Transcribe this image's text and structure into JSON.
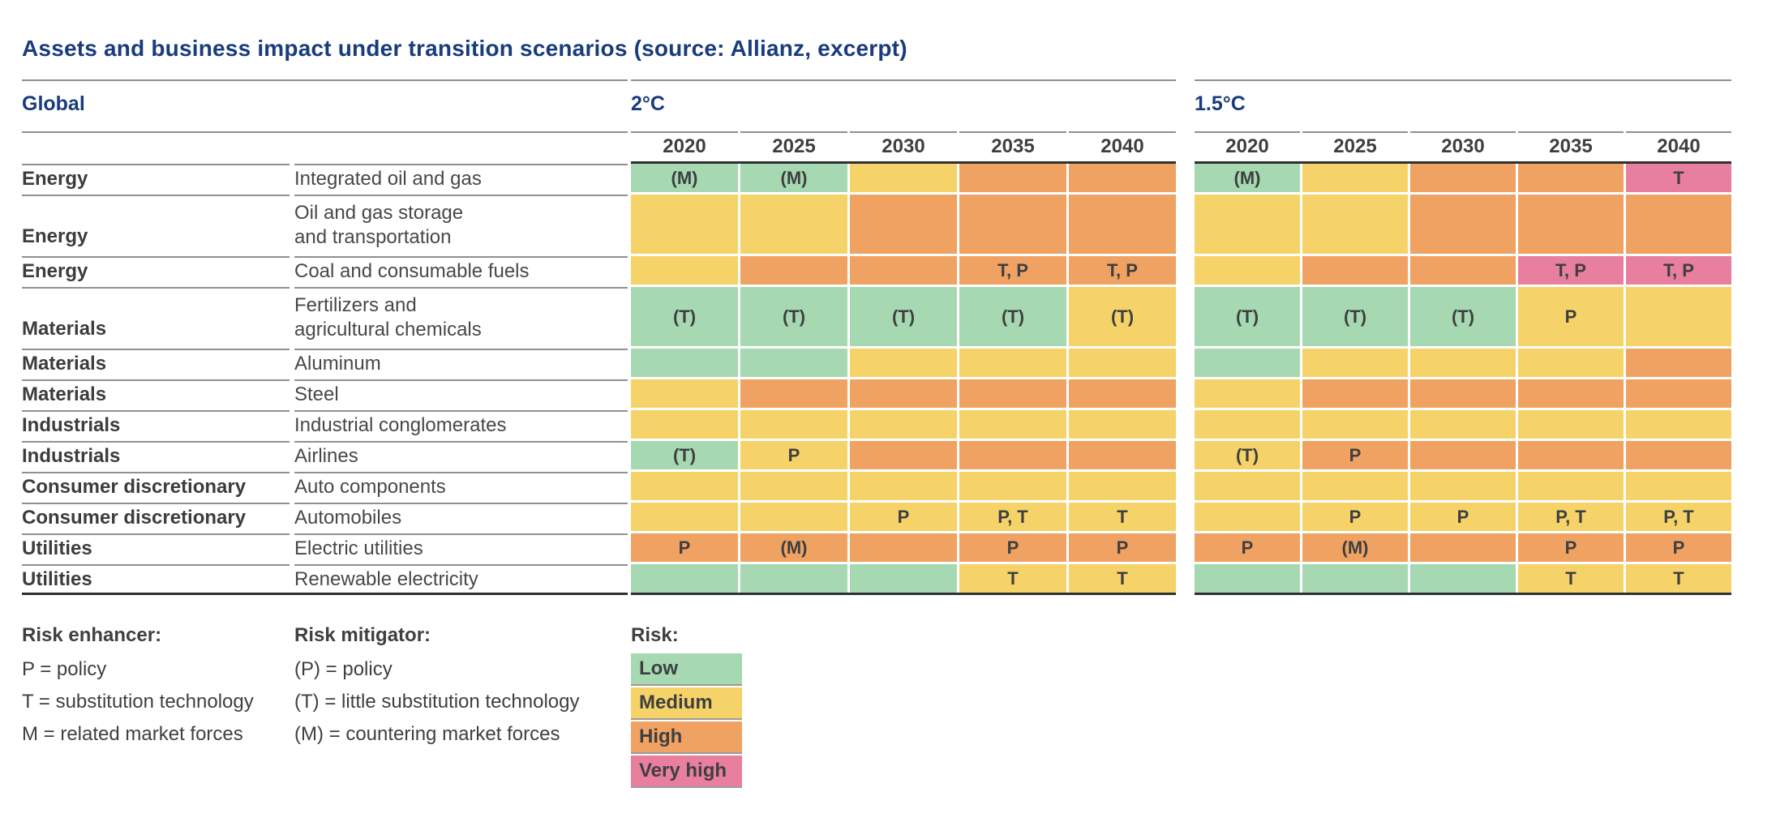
{
  "title": "Assets and business impact under transition scenarios (source: Allianz, excerpt)",
  "colors": {
    "low": "#a6d9b2",
    "medium": "#f5d369",
    "high": "#f0a263",
    "very_high": "#e87f9e",
    "heading_blue": "#183c7c",
    "text_dark": "#3e3f41"
  },
  "chart_data": {
    "type": "heatmap",
    "title": "Assets and business impact under transition scenarios (source: Allianz, excerpt)",
    "region": "Global",
    "risk_levels": [
      "Low",
      "Medium",
      "High",
      "Very high"
    ],
    "scenarios": [
      {
        "label": "2°C",
        "years": [
          "2020",
          "2025",
          "2030",
          "2035",
          "2040"
        ]
      },
      {
        "label": "1.5°C",
        "years": [
          "2020",
          "2025",
          "2030",
          "2035",
          "2040"
        ]
      }
    ],
    "rows": [
      {
        "sector": "Energy",
        "industry": [
          "Integrated oil and gas"
        ],
        "cells_2c": [
          {
            "risk": "low",
            "note": "(M)"
          },
          {
            "risk": "low",
            "note": "(M)"
          },
          {
            "risk": "medium",
            "note": ""
          },
          {
            "risk": "high",
            "note": ""
          },
          {
            "risk": "high",
            "note": ""
          }
        ],
        "cells_15c": [
          {
            "risk": "low",
            "note": "(M)"
          },
          {
            "risk": "medium",
            "note": ""
          },
          {
            "risk": "high",
            "note": ""
          },
          {
            "risk": "high",
            "note": ""
          },
          {
            "risk": "very_high",
            "note": "T"
          }
        ]
      },
      {
        "sector": "Energy",
        "industry": [
          "Oil and gas storage",
          "and transportation"
        ],
        "cells_2c": [
          {
            "risk": "medium",
            "note": ""
          },
          {
            "risk": "medium",
            "note": ""
          },
          {
            "risk": "high",
            "note": ""
          },
          {
            "risk": "high",
            "note": ""
          },
          {
            "risk": "high",
            "note": ""
          }
        ],
        "cells_15c": [
          {
            "risk": "medium",
            "note": ""
          },
          {
            "risk": "medium",
            "note": ""
          },
          {
            "risk": "high",
            "note": ""
          },
          {
            "risk": "high",
            "note": ""
          },
          {
            "risk": "high",
            "note": ""
          }
        ]
      },
      {
        "sector": "Energy",
        "industry": [
          "Coal and consumable fuels"
        ],
        "cells_2c": [
          {
            "risk": "medium",
            "note": ""
          },
          {
            "risk": "high",
            "note": ""
          },
          {
            "risk": "high",
            "note": ""
          },
          {
            "risk": "high",
            "note": "T, P"
          },
          {
            "risk": "high",
            "note": "T, P"
          }
        ],
        "cells_15c": [
          {
            "risk": "medium",
            "note": ""
          },
          {
            "risk": "high",
            "note": ""
          },
          {
            "risk": "high",
            "note": ""
          },
          {
            "risk": "very_high",
            "note": "T, P"
          },
          {
            "risk": "very_high",
            "note": "T, P"
          }
        ]
      },
      {
        "sector": "Materials",
        "industry": [
          "Fertilizers and",
          "agricultural chemicals"
        ],
        "cells_2c": [
          {
            "risk": "low",
            "note": "(T)"
          },
          {
            "risk": "low",
            "note": "(T)"
          },
          {
            "risk": "low",
            "note": "(T)"
          },
          {
            "risk": "low",
            "note": "(T)"
          },
          {
            "risk": "medium",
            "note": "(T)"
          }
        ],
        "cells_15c": [
          {
            "risk": "low",
            "note": "(T)"
          },
          {
            "risk": "low",
            "note": "(T)"
          },
          {
            "risk": "low",
            "note": "(T)"
          },
          {
            "risk": "medium",
            "note": "P"
          },
          {
            "risk": "medium",
            "note": ""
          }
        ]
      },
      {
        "sector": "Materials",
        "industry": [
          "Aluminum"
        ],
        "cells_2c": [
          {
            "risk": "low",
            "note": ""
          },
          {
            "risk": "low",
            "note": ""
          },
          {
            "risk": "medium",
            "note": ""
          },
          {
            "risk": "medium",
            "note": ""
          },
          {
            "risk": "medium",
            "note": ""
          }
        ],
        "cells_15c": [
          {
            "risk": "low",
            "note": ""
          },
          {
            "risk": "medium",
            "note": ""
          },
          {
            "risk": "medium",
            "note": ""
          },
          {
            "risk": "medium",
            "note": ""
          },
          {
            "risk": "high",
            "note": ""
          }
        ]
      },
      {
        "sector": "Materials",
        "industry": [
          "Steel"
        ],
        "cells_2c": [
          {
            "risk": "medium",
            "note": ""
          },
          {
            "risk": "high",
            "note": ""
          },
          {
            "risk": "high",
            "note": ""
          },
          {
            "risk": "high",
            "note": ""
          },
          {
            "risk": "high",
            "note": ""
          }
        ],
        "cells_15c": [
          {
            "risk": "medium",
            "note": ""
          },
          {
            "risk": "high",
            "note": ""
          },
          {
            "risk": "high",
            "note": ""
          },
          {
            "risk": "high",
            "note": ""
          },
          {
            "risk": "high",
            "note": ""
          }
        ]
      },
      {
        "sector": "Industrials",
        "industry": [
          "Industrial conglomerates"
        ],
        "cells_2c": [
          {
            "risk": "medium",
            "note": ""
          },
          {
            "risk": "medium",
            "note": ""
          },
          {
            "risk": "medium",
            "note": ""
          },
          {
            "risk": "medium",
            "note": ""
          },
          {
            "risk": "medium",
            "note": ""
          }
        ],
        "cells_15c": [
          {
            "risk": "medium",
            "note": ""
          },
          {
            "risk": "medium",
            "note": ""
          },
          {
            "risk": "medium",
            "note": ""
          },
          {
            "risk": "medium",
            "note": ""
          },
          {
            "risk": "medium",
            "note": ""
          }
        ]
      },
      {
        "sector": "Industrials",
        "industry": [
          "Airlines"
        ],
        "cells_2c": [
          {
            "risk": "low",
            "note": "(T)"
          },
          {
            "risk": "medium",
            "note": "P"
          },
          {
            "risk": "high",
            "note": ""
          },
          {
            "risk": "high",
            "note": ""
          },
          {
            "risk": "high",
            "note": ""
          }
        ],
        "cells_15c": [
          {
            "risk": "medium",
            "note": "(T)"
          },
          {
            "risk": "high",
            "note": "P"
          },
          {
            "risk": "high",
            "note": ""
          },
          {
            "risk": "high",
            "note": ""
          },
          {
            "risk": "high",
            "note": ""
          }
        ]
      },
      {
        "sector": "Consumer discretionary",
        "industry": [
          "Auto components"
        ],
        "cells_2c": [
          {
            "risk": "medium",
            "note": ""
          },
          {
            "risk": "medium",
            "note": ""
          },
          {
            "risk": "medium",
            "note": ""
          },
          {
            "risk": "medium",
            "note": ""
          },
          {
            "risk": "medium",
            "note": ""
          }
        ],
        "cells_15c": [
          {
            "risk": "medium",
            "note": ""
          },
          {
            "risk": "medium",
            "note": ""
          },
          {
            "risk": "medium",
            "note": ""
          },
          {
            "risk": "medium",
            "note": ""
          },
          {
            "risk": "medium",
            "note": ""
          }
        ]
      },
      {
        "sector": "Consumer discretionary",
        "industry": [
          "Automobiles"
        ],
        "cells_2c": [
          {
            "risk": "medium",
            "note": ""
          },
          {
            "risk": "medium",
            "note": ""
          },
          {
            "risk": "medium",
            "note": "P"
          },
          {
            "risk": "medium",
            "note": "P, T"
          },
          {
            "risk": "medium",
            "note": "T"
          }
        ],
        "cells_15c": [
          {
            "risk": "medium",
            "note": ""
          },
          {
            "risk": "medium",
            "note": "P"
          },
          {
            "risk": "medium",
            "note": "P"
          },
          {
            "risk": "medium",
            "note": "P, T"
          },
          {
            "risk": "medium",
            "note": "P, T"
          }
        ]
      },
      {
        "sector": "Utilities",
        "industry": [
          "Electric utilities"
        ],
        "cells_2c": [
          {
            "risk": "high",
            "note": "P"
          },
          {
            "risk": "high",
            "note": "(M)"
          },
          {
            "risk": "high",
            "note": ""
          },
          {
            "risk": "high",
            "note": "P"
          },
          {
            "risk": "high",
            "note": "P"
          }
        ],
        "cells_15c": [
          {
            "risk": "high",
            "note": "P"
          },
          {
            "risk": "high",
            "note": "(M)"
          },
          {
            "risk": "high",
            "note": ""
          },
          {
            "risk": "high",
            "note": "P"
          },
          {
            "risk": "high",
            "note": "P"
          }
        ]
      },
      {
        "sector": "Utilities",
        "industry": [
          "Renewable electricity"
        ],
        "cells_2c": [
          {
            "risk": "low",
            "note": ""
          },
          {
            "risk": "low",
            "note": ""
          },
          {
            "risk": "low",
            "note": ""
          },
          {
            "risk": "medium",
            "note": "T"
          },
          {
            "risk": "medium",
            "note": "T"
          }
        ],
        "cells_15c": [
          {
            "risk": "low",
            "note": ""
          },
          {
            "risk": "low",
            "note": ""
          },
          {
            "risk": "low",
            "note": ""
          },
          {
            "risk": "medium",
            "note": "T"
          },
          {
            "risk": "medium",
            "note": "T"
          }
        ]
      }
    ],
    "legend": {
      "risk_enhancer": {
        "heading": "Risk enhancer:",
        "items": [
          "P = policy",
          "T = substitution technology",
          "M = related market forces"
        ]
      },
      "risk_mitigator": {
        "heading": "Risk mitigator:",
        "items": [
          "(P) = policy",
          "(T) = little substitution technology",
          "(M) = countering market forces"
        ]
      },
      "risk_scale": {
        "heading": "Risk:",
        "items": [
          {
            "label": "Low",
            "risk": "low"
          },
          {
            "label": "Medium",
            "risk": "medium"
          },
          {
            "label": "High",
            "risk": "high"
          },
          {
            "label": "Very high",
            "risk": "very_high"
          }
        ]
      }
    }
  }
}
